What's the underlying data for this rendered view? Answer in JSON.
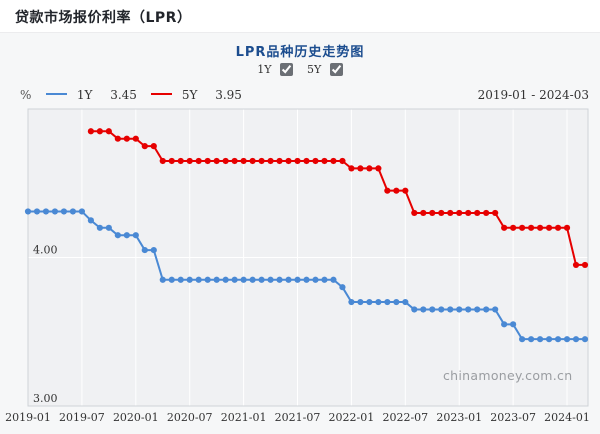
{
  "header": {
    "title": "贷款市场报价利率（LPR）"
  },
  "chart_header": {
    "subtitle": "LPR品种历史走势图",
    "toggles": [
      {
        "label": "1Y",
        "checked": true
      },
      {
        "label": "5Y",
        "checked": true
      }
    ]
  },
  "legend": {
    "unit": "%",
    "series": [
      {
        "label": "1Y",
        "value": "3.45",
        "color": "#4a89d4"
      },
      {
        "label": "5Y",
        "value": "3.95",
        "color": "#e60000"
      }
    ],
    "date_range": "2019-01 - 2024-03"
  },
  "watermark": "chinamoney.com.cn",
  "chart_data": {
    "type": "line",
    "title": "LPR品种历史走势图",
    "x_unit": "month",
    "x_start": "2019-01",
    "x_end": "2024-03",
    "x_tick_labels": [
      "2019-01",
      "2019-07",
      "2020-01",
      "2020-07",
      "2021-01",
      "2021-07",
      "2022-01",
      "2022-07",
      "2023-01",
      "2023-07",
      "2024-01"
    ],
    "ylabel": "%",
    "ylim": [
      3.0,
      5.0
    ],
    "y_ticks": [
      {
        "value": 4.0,
        "label": "4.00"
      },
      {
        "value": 3.0,
        "label": "3.00"
      }
    ],
    "y_gridlines": [
      4.0
    ],
    "grid": true,
    "legend_position": "top-left",
    "series": [
      {
        "name": "1Y",
        "color": "#4a89d4",
        "start": "2019-01",
        "values": [
          4.31,
          4.31,
          4.31,
          4.31,
          4.31,
          4.31,
          4.31,
          4.25,
          4.2,
          4.2,
          4.15,
          4.15,
          4.15,
          4.05,
          4.05,
          3.85,
          3.85,
          3.85,
          3.85,
          3.85,
          3.85,
          3.85,
          3.85,
          3.85,
          3.85,
          3.85,
          3.85,
          3.85,
          3.85,
          3.85,
          3.85,
          3.85,
          3.85,
          3.85,
          3.85,
          3.8,
          3.7,
          3.7,
          3.7,
          3.7,
          3.7,
          3.7,
          3.7,
          3.65,
          3.65,
          3.65,
          3.65,
          3.65,
          3.65,
          3.65,
          3.65,
          3.65,
          3.65,
          3.55,
          3.55,
          3.45,
          3.45,
          3.45,
          3.45,
          3.45,
          3.45,
          3.45,
          3.45
        ]
      },
      {
        "name": "5Y",
        "color": "#e60000",
        "start": "2019-08",
        "values": [
          4.85,
          4.85,
          4.85,
          4.8,
          4.8,
          4.8,
          4.75,
          4.75,
          4.65,
          4.65,
          4.65,
          4.65,
          4.65,
          4.65,
          4.65,
          4.65,
          4.65,
          4.65,
          4.65,
          4.65,
          4.65,
          4.65,
          4.65,
          4.65,
          4.65,
          4.65,
          4.65,
          4.65,
          4.65,
          4.6,
          4.6,
          4.6,
          4.6,
          4.45,
          4.45,
          4.45,
          4.3,
          4.3,
          4.3,
          4.3,
          4.3,
          4.3,
          4.3,
          4.3,
          4.3,
          4.3,
          4.2,
          4.2,
          4.2,
          4.2,
          4.2,
          4.2,
          4.2,
          4.2,
          3.95,
          3.95
        ]
      }
    ],
    "plot_style": {
      "plot_bg": "#f0f1f3",
      "grid_color": "#ffffff",
      "border_color": "#cfd3d7",
      "tick_text_color": "#333333"
    }
  }
}
